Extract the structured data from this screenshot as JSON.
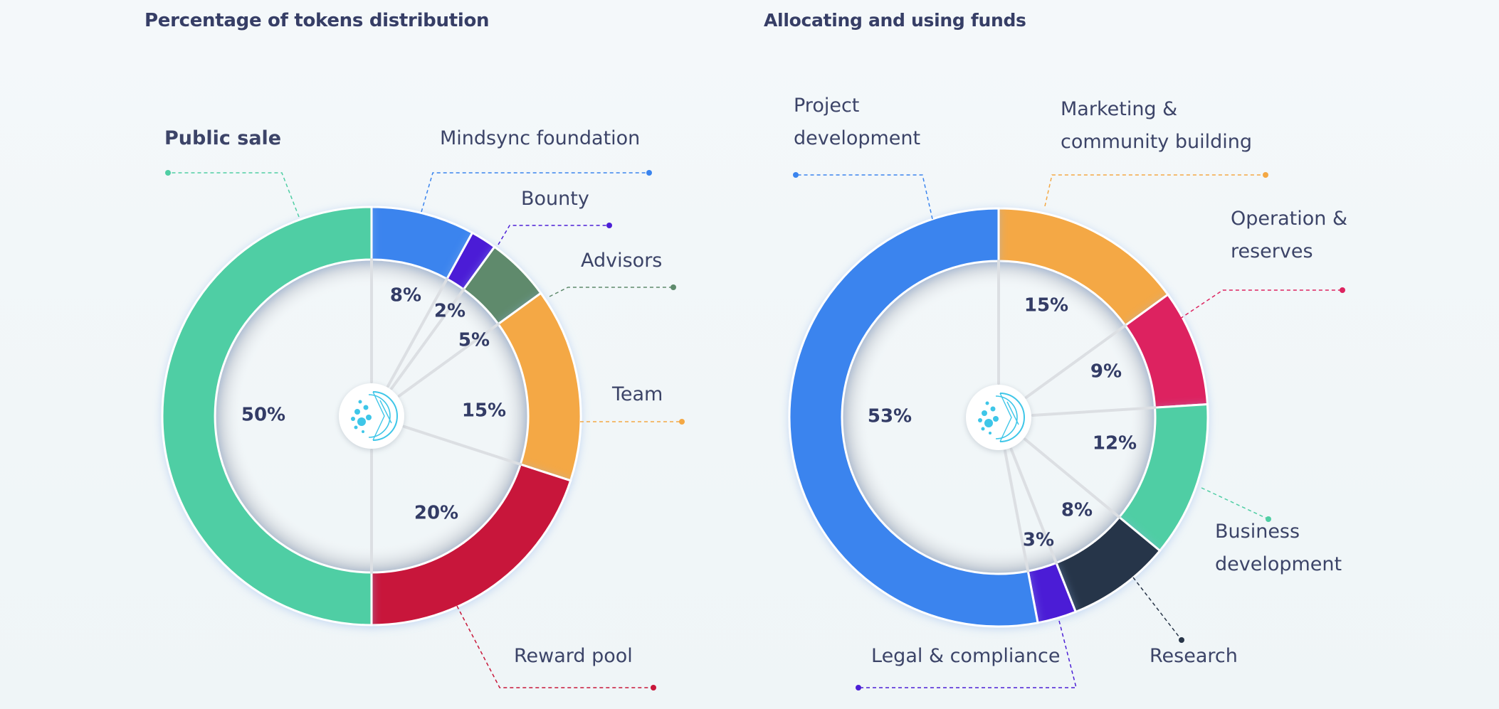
{
  "colors": {
    "green": "#4fcea4",
    "blue": "#3a84ee",
    "purple": "#4c1fd6",
    "olive": "#5e8a6c",
    "orange": "#f4a844",
    "red": "#c8173a",
    "crimson": "#dd2460",
    "navy": "#283548",
    "text": "#3c4468",
    "logo": "#3ec6e8"
  },
  "logo_icon": "mindsync-globe-icon",
  "chart_data": [
    {
      "type": "pie",
      "title": "Percentage of tokens distribution",
      "slices": [
        {
          "name": "Mindsync foundation",
          "value": 8,
          "value_label": "8%",
          "color": "#3a84ee"
        },
        {
          "name": "Bounty",
          "value": 2,
          "value_label": "2%",
          "color": "#4c1fd6"
        },
        {
          "name": "Advisors",
          "value": 5,
          "value_label": "5%",
          "color": "#5e8a6c"
        },
        {
          "name": "Team",
          "value": 15,
          "value_label": "15%",
          "color": "#f4a844"
        },
        {
          "name": "Reward pool",
          "value": 20,
          "value_label": "20%",
          "color": "#c8173a"
        },
        {
          "name": "Public sale",
          "value": 50,
          "value_label": "50%",
          "color": "#4fcea4",
          "emphasis": true
        }
      ]
    },
    {
      "type": "pie",
      "title": "Allocating and using funds",
      "slices": [
        {
          "name": [
            "Marketing &",
            "community building"
          ],
          "value": 15,
          "value_label": "15%",
          "color": "#f4a844"
        },
        {
          "name": [
            "Operation &",
            "reserves"
          ],
          "value": 9,
          "value_label": "9%",
          "color": "#dd2460"
        },
        {
          "name": [
            "Business",
            "development"
          ],
          "value": 12,
          "value_label": "12%",
          "color": "#4fcea4"
        },
        {
          "name": [
            "Research"
          ],
          "value": 8,
          "value_label": "8%",
          "color": "#283548"
        },
        {
          "name": [
            "Legal & compliance"
          ],
          "value": 3,
          "value_label": "3%",
          "color": "#4c1fd6"
        },
        {
          "name": [
            "Project",
            "development"
          ],
          "value": 53,
          "value_label": "53%",
          "color": "#3a84ee"
        }
      ]
    }
  ]
}
